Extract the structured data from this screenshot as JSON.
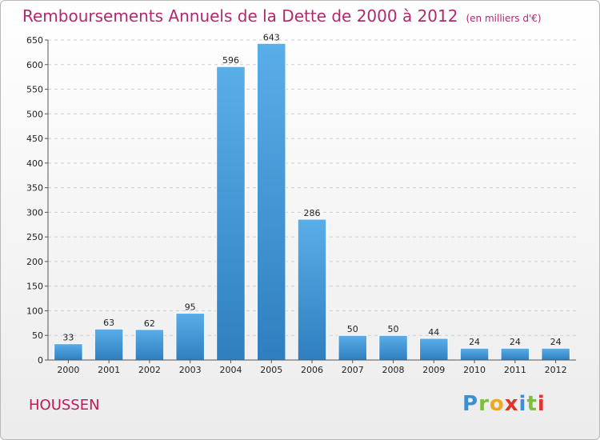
{
  "header": {
    "title": "Remboursements Annuels de la Dette de 2000 à 2012",
    "subtitle": "(en milliers d'€)"
  },
  "commune": "HOUSSEN",
  "logo": {
    "letters": [
      "P",
      "r",
      "o",
      "x",
      "i",
      "t",
      "i"
    ]
  },
  "chart_data": {
    "type": "bar",
    "title": "Remboursements Annuels de la Dette de 2000 à 2012",
    "subtitle": "(en milliers d'€)",
    "xlabel": "",
    "ylabel": "",
    "categories": [
      "2000",
      "2001",
      "2002",
      "2003",
      "2004",
      "2005",
      "2006",
      "2007",
      "2008",
      "2009",
      "2010",
      "2011",
      "2012"
    ],
    "values": [
      33,
      63,
      62,
      95,
      596,
      643,
      286,
      50,
      50,
      44,
      24,
      24,
      24
    ],
    "ylim": [
      0,
      650
    ],
    "yticks": [
      0,
      50,
      100,
      150,
      200,
      250,
      300,
      350,
      400,
      450,
      500,
      550,
      600,
      650
    ],
    "grid": true,
    "bar_color": "#3a93d8"
  }
}
